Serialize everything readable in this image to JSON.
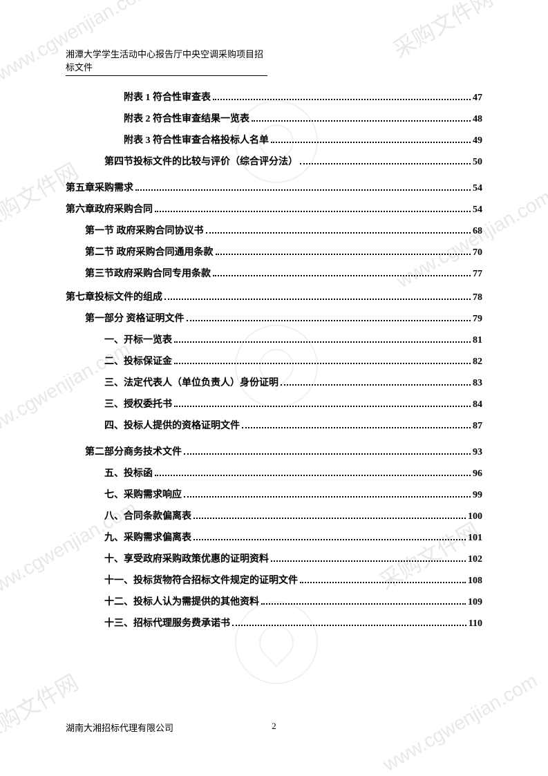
{
  "header_title": "湘潭大学学生活动中心报告厅中央空调采购项目招标文件",
  "watermark_text": "www.cgwenjian.com",
  "watermark_brand": "采购文件网",
  "toc_entries": [
    {
      "label": "附表 1 符合性审查表",
      "page": "47",
      "indent": 3
    },
    {
      "label": "附表 2 符合性审查结果一览表",
      "page": "48",
      "indent": 3
    },
    {
      "label": "附表 3 符合性审查合格投标人名单",
      "page": "49",
      "indent": 3
    },
    {
      "label": "第四节投标文件的比较与评价（综合评分法）",
      "page": "50",
      "indent": 2
    },
    {
      "label": "第五章采购需求",
      "page": "54",
      "indent": 0
    },
    {
      "label": "第六章政府采购合同",
      "page": "54",
      "indent": 0
    },
    {
      "label": "第一节 政府采购合同协议书",
      "page": "68",
      "indent": 1
    },
    {
      "label": "第二节 政府采购合同通用条款",
      "page": "70",
      "indent": 1
    },
    {
      "label": "第三节政府采购合同专用条款",
      "page": "77",
      "indent": 1
    },
    {
      "label": "第七章投标文件的组成",
      "page": "78",
      "indent": 0
    },
    {
      "label": "第一部分 资格证明文件",
      "page": "79",
      "indent": 1
    },
    {
      "label": "一、开标一览表",
      "page": "81",
      "indent": 2
    },
    {
      "label": "二、投标保证金",
      "page": "82",
      "indent": 2
    },
    {
      "label": "三、法定代表人（单位负责人）身份证明",
      "page": "83",
      "indent": 2
    },
    {
      "label": "三、授权委托书",
      "page": "84",
      "indent": 2
    },
    {
      "label": "四、投标人提供的资格证明文件",
      "page": "87",
      "indent": 2
    },
    {
      "label": "第二部分商务技术文件",
      "page": "93",
      "indent": 1
    },
    {
      "label": "五、投标函",
      "page": "96",
      "indent": 2
    },
    {
      "label": "七、采购需求响应",
      "page": "99",
      "indent": 2
    },
    {
      "label": "八、合同条款偏离表",
      "page": "100",
      "indent": 2
    },
    {
      "label": "九、采购需求偏离表",
      "page": "101",
      "indent": 2
    },
    {
      "label": "十、享受政府采购政策优惠的证明资料",
      "page": "102",
      "indent": 2
    },
    {
      "label": "十一、投标货物符合招标文件规定的证明文件",
      "page": "108",
      "indent": 2
    },
    {
      "label": "十二、投标人认为需提供的其他资料",
      "page": "109",
      "indent": 2
    },
    {
      "label": "十三、招标代理服务费承诺书",
      "page": "110",
      "indent": 2
    }
  ],
  "footer_company": "湖南大湘招标代理有限公司",
  "footer_page": "2"
}
